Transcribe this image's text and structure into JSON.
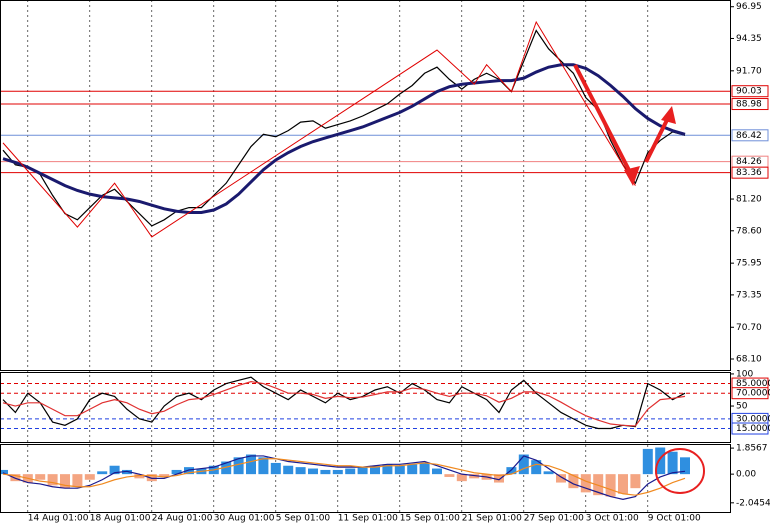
{
  "chart_data": [
    {
      "type": "line",
      "categories": [
        null,
        null,
        "14 Aug 01:00",
        null,
        null,
        null,
        null,
        "18 Aug 01:00",
        null,
        null,
        null,
        null,
        "24 Aug 01:00",
        null,
        null,
        null,
        null,
        "30 Aug 01:00",
        null,
        null,
        null,
        null,
        "5 Sep 01:00",
        null,
        null,
        null,
        null,
        "11 Sep 01:00",
        null,
        null,
        null,
        null,
        "15 Sep 01:00",
        null,
        null,
        null,
        null,
        "21 Sep 01:00",
        null,
        null,
        null,
        null,
        "27 Sep 01:00",
        null,
        null,
        null,
        null,
        "3 Oct 01:00",
        null,
        null,
        null,
        null,
        "9 Oct 01:00",
        null,
        null,
        null
      ],
      "series": [
        {
          "color": "#000000",
          "values": [
            85.2,
            84.0,
            83.8,
            83.2,
            81.5,
            80.0,
            79.5,
            80.5,
            81.5,
            82.0,
            81.0,
            80.0,
            79.0,
            79.5,
            80.2,
            80.5,
            80.5,
            81.5,
            82.5,
            84.0,
            85.5,
            86.5,
            86.3,
            86.8,
            87.5,
            87.6,
            87.0,
            87.3,
            87.6,
            88.0,
            88.5,
            89.0,
            89.8,
            90.5,
            91.5,
            92.0,
            91.0,
            90.2,
            91.0,
            91.5,
            91.0,
            90.0,
            92.5,
            95.0,
            93.5,
            92.5,
            91.5,
            89.5,
            88.5,
            86.0,
            84.0,
            82.5,
            85.0,
            86.0,
            86.7,
            86.42
          ]
        },
        {
          "color": "#1a1a6e",
          "values": [
            84.5,
            84.2,
            83.8,
            83.3,
            82.8,
            82.3,
            81.9,
            81.6,
            81.4,
            81.3,
            81.2,
            81.0,
            80.7,
            80.4,
            80.2,
            80.1,
            80.1,
            80.3,
            80.8,
            81.6,
            82.6,
            83.6,
            84.4,
            85.0,
            85.5,
            85.9,
            86.2,
            86.5,
            86.8,
            87.1,
            87.5,
            87.9,
            88.3,
            88.8,
            89.4,
            90.0,
            90.4,
            90.6,
            90.7,
            90.8,
            90.9,
            90.9,
            91.1,
            91.6,
            92.0,
            92.2,
            92.2,
            91.9,
            91.3,
            90.5,
            89.6,
            88.6,
            87.8,
            87.2,
            86.8,
            86.5
          ]
        }
      ],
      "zigzag": {
        "color": "#e00000",
        "x": [
          0,
          6,
          9,
          12,
          35,
          38,
          39,
          41,
          43,
          51
        ],
        "values": [
          85.8,
          78.9,
          82.5,
          78.1,
          93.4,
          90.6,
          92.2,
          90.0,
          95.7,
          82.3
        ]
      },
      "levels": [
        {
          "value": 90.03,
          "color": "#e00000"
        },
        {
          "value": 88.98,
          "color": "#e00000"
        },
        {
          "value": 86.42,
          "color": "#6f8fd8"
        },
        {
          "value": 84.26,
          "color": "#f08080"
        },
        {
          "value": 83.36,
          "color": "#e00000"
        }
      ],
      "ylim": [
        67.2,
        97.5
      ],
      "yticks": [
        96.95,
        94.35,
        {
          "value": 91.7,
          "label": "91.70"
        },
        {
          "value": 81.2,
          "label": "81.20"
        },
        {
          "value": 78.6,
          "label": "78.60"
        },
        75.95,
        73.35,
        {
          "value": 70.7,
          "label": "70.70"
        },
        {
          "value": 68.1,
          "label": "68.10"
        }
      ]
    },
    {
      "type": "line",
      "series": [
        {
          "color": "#000000",
          "values": [
            60,
            40,
            70,
            55,
            25,
            20,
            30,
            60,
            70,
            65,
            45,
            30,
            25,
            50,
            65,
            70,
            60,
            75,
            85,
            90,
            95,
            80,
            70,
            60,
            75,
            65,
            55,
            70,
            60,
            65,
            75,
            80,
            70,
            85,
            75,
            60,
            55,
            80,
            70,
            60,
            40,
            75,
            90,
            70,
            55,
            40,
            30,
            20,
            15,
            15,
            20,
            18,
            85,
            75,
            60,
            70
          ]
        },
        {
          "color": "#e03030",
          "values": [
            55,
            50,
            55,
            55,
            45,
            35,
            35,
            45,
            55,
            60,
            55,
            45,
            38,
            42,
            52,
            60,
            62,
            68,
            75,
            82,
            88,
            85,
            78,
            70,
            70,
            68,
            62,
            65,
            63,
            64,
            68,
            72,
            72,
            78,
            76,
            70,
            65,
            70,
            70,
            66,
            56,
            62,
            72,
            72,
            66,
            56,
            45,
            35,
            28,
            22,
            20,
            19,
            45,
            60,
            62,
            65
          ]
        }
      ],
      "levels": [
        {
          "value": 85,
          "label": "85.0000",
          "color": "#e00000"
        },
        {
          "value": 70,
          "label": "70.0000",
          "color": "#e00000"
        },
        {
          "value": 30,
          "label": "30.0000",
          "color": "#2040e0"
        },
        {
          "value": 15,
          "label": "15.0000",
          "color": "#2040e0"
        }
      ],
      "ylim": [
        -6,
        103
      ],
      "yticks": [
        100,
        50
      ]
    },
    {
      "type": "bar",
      "values": [
        0.3,
        -0.5,
        -0.6,
        -0.4,
        -0.8,
        -1.0,
        -0.9,
        -0.4,
        0.2,
        0.6,
        0.3,
        -0.3,
        -0.5,
        -0.2,
        0.3,
        0.5,
        0.4,
        0.6,
        0.9,
        1.2,
        1.4,
        1.2,
        0.8,
        0.6,
        0.5,
        0.4,
        0.3,
        0.3,
        0.4,
        0.5,
        0.6,
        0.7,
        0.6,
        0.7,
        0.8,
        0.4,
        -0.2,
        -0.5,
        -0.3,
        -0.4,
        -0.6,
        0.5,
        1.4,
        1.0,
        0.2,
        -0.6,
        -1.0,
        -1.3,
        -1.5,
        -1.6,
        -1.4,
        -1.0,
        1.8,
        1.9,
        1.6,
        1.2
      ],
      "colors": [
        "#2f8fe0",
        "#f4a582"
      ],
      "series": [
        {
          "color": "#1a1a8e",
          "values": [
            0.1,
            -0.3,
            -0.6,
            -0.7,
            -0.9,
            -1.0,
            -1.0,
            -0.8,
            -0.4,
            0.1,
            0.2,
            0,
            -0.3,
            -0.3,
            0,
            0.3,
            0.4,
            0.5,
            0.8,
            1.1,
            1.3,
            1.3,
            1.1,
            0.9,
            0.8,
            0.7,
            0.6,
            0.5,
            0.5,
            0.5,
            0.6,
            0.7,
            0.7,
            0.8,
            0.9,
            0.6,
            0.3,
            0,
            -0.1,
            -0.2,
            -0.4,
            0.3,
            1.3,
            1.0,
            0.4,
            -0.2,
            -0.7,
            -1.0,
            -1.3,
            -1.6,
            -1.8,
            -1.6,
            -0.7,
            -0.2,
            0.1,
            0.2
          ]
        },
        {
          "color": "#f08a20",
          "values": [
            0,
            -0.1,
            -0.3,
            -0.5,
            -0.6,
            -0.8,
            -0.9,
            -0.9,
            -0.7,
            -0.4,
            -0.2,
            -0.1,
            -0.1,
            -0.2,
            -0.1,
            0.1,
            0.2,
            0.3,
            0.5,
            0.7,
            0.9,
            1.1,
            1.1,
            1.0,
            0.9,
            0.8,
            0.7,
            0.6,
            0.6,
            0.5,
            0.5,
            0.6,
            0.6,
            0.7,
            0.8,
            0.7,
            0.5,
            0.3,
            0.1,
            0,
            -0.1,
            0,
            0.4,
            0.7,
            0.6,
            0.3,
            -0.1,
            -0.5,
            -0.8,
            -1.1,
            -1.4,
            -1.5,
            -1.3,
            -1.0,
            -0.6,
            -0.3
          ]
        }
      ],
      "ylim": [
        -2.7,
        2.15
      ],
      "yticks": [
        1.8567,
        {
          "value": 0,
          "label": "0.00"
        },
        -2.0454
      ]
    }
  ]
}
